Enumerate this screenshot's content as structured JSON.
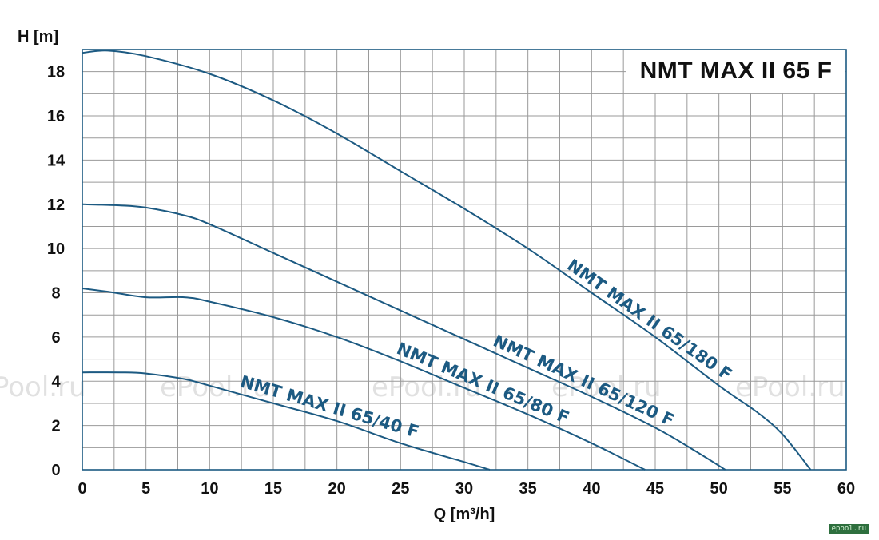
{
  "chart_data": {
    "type": "line",
    "title": "NMT MAX II 65 F",
    "xlabel": "Q [m³/h]",
    "ylabel": "H [m]",
    "xlim": [
      0,
      60
    ],
    "ylim": [
      0,
      19
    ],
    "xticks": [
      0,
      5,
      10,
      15,
      20,
      25,
      30,
      35,
      40,
      45,
      50,
      55,
      60
    ],
    "yticks": [
      0,
      2,
      4,
      6,
      8,
      10,
      12,
      14,
      16,
      18
    ],
    "grid": true,
    "legend": "inline labels along curves",
    "series": [
      {
        "name": "NMT MAX II 65/180 F",
        "x": [
          0,
          2,
          5,
          10,
          15,
          20,
          25,
          30,
          35,
          40,
          45,
          50,
          53,
          55,
          57.2
        ],
        "y": [
          18.85,
          18.95,
          18.7,
          17.9,
          16.7,
          15.2,
          13.5,
          11.8,
          10.0,
          8.0,
          6.0,
          3.8,
          2.6,
          1.6,
          0.0
        ]
      },
      {
        "name": "NMT MAX II 65/120 F",
        "x": [
          0,
          3,
          5,
          8,
          10,
          15,
          20,
          25,
          30,
          35,
          40,
          45,
          48,
          50.5
        ],
        "y": [
          12.0,
          11.95,
          11.85,
          11.5,
          11.1,
          9.8,
          8.5,
          7.2,
          5.9,
          4.6,
          3.3,
          1.9,
          0.9,
          0.0
        ]
      },
      {
        "name": "NMT MAX II 65/80 F",
        "x": [
          0,
          2,
          5,
          8,
          10,
          15,
          20,
          25,
          30,
          35,
          40,
          44.2
        ],
        "y": [
          8.2,
          8.05,
          7.8,
          7.8,
          7.6,
          6.9,
          6.0,
          4.9,
          3.7,
          2.5,
          1.2,
          0.0
        ]
      },
      {
        "name": "NMT MAX II 65/40 F",
        "x": [
          0,
          3,
          5,
          8,
          10,
          15,
          20,
          25,
          30,
          32
        ],
        "y": [
          4.4,
          4.4,
          4.35,
          4.1,
          3.8,
          3.0,
          2.2,
          1.2,
          0.35,
          0.0
        ]
      }
    ]
  },
  "watermark": "ePool.ru",
  "footer_mark": "epool.ru",
  "colors": {
    "curve": "#1c5a82",
    "label": "#1c5a82",
    "grid": "#9a9a9a",
    "frame": "#1c5a82",
    "text": "#111111"
  }
}
